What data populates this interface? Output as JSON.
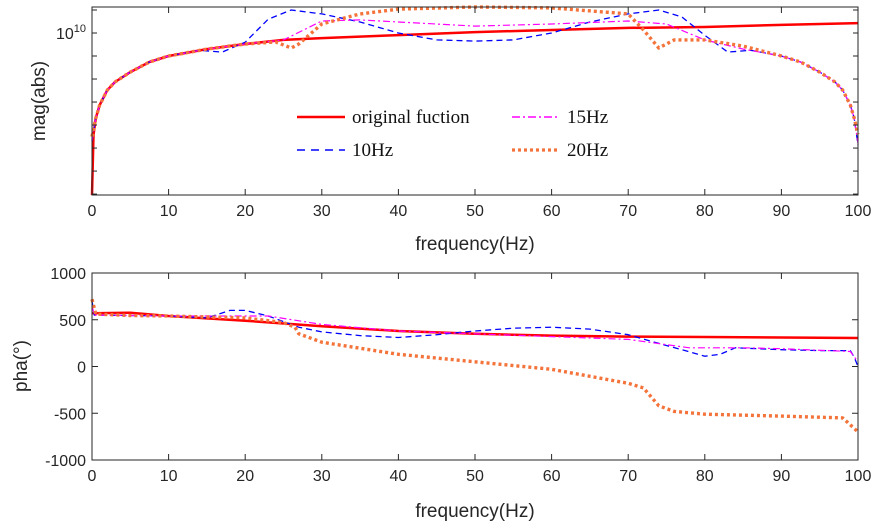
{
  "colors": {
    "original": "#ff0000",
    "10Hz": "#0000ff",
    "15Hz": "#ff00ff",
    "20Hz": "#f4733a"
  },
  "chart_data": [
    {
      "type": "line",
      "xlabel": "frequency(Hz)",
      "ylabel": "mag(abs)",
      "yscale": "log",
      "xlim": [
        0,
        100
      ],
      "ylim_log10": [
        2.96,
        11.13
      ],
      "xticks": [
        0,
        10,
        20,
        30,
        40,
        50,
        60,
        70,
        80,
        90,
        100
      ],
      "ytick_labels": [
        {
          "base": "10",
          "exp": "10",
          "value_log10": 10
        }
      ],
      "grid": false,
      "legend": {
        "placement": "center",
        "entries": [
          "original fuction",
          "10Hz",
          "15Hz",
          "20Hz"
        ]
      },
      "series": [
        {
          "name": "original fuction",
          "style": "solid",
          "x": [
            0,
            0.2,
            0.5,
            1,
            2,
            3,
            5,
            7.5,
            10,
            15,
            20,
            25,
            30,
            40,
            50,
            60,
            70,
            80,
            90,
            100
          ],
          "y_log10": [
            2.96,
            5.57,
            6.3,
            6.87,
            7.52,
            7.87,
            8.3,
            8.74,
            9.0,
            9.3,
            9.52,
            9.7,
            9.78,
            9.91,
            10.04,
            10.13,
            10.22,
            10.26,
            10.35,
            10.43
          ]
        },
        {
          "name": "10Hz",
          "style": "dashed",
          "x": [
            0,
            0.5,
            1,
            2,
            3,
            5,
            7.5,
            10,
            14,
            17,
            20,
            23,
            26,
            30,
            35,
            40,
            45,
            50,
            55,
            60,
            65,
            70,
            74,
            77,
            80,
            83,
            86,
            90,
            92.5,
            95,
            97,
            98,
            99,
            99.5,
            100
          ],
          "y_log10": [
            5.3,
            6.3,
            6.87,
            7.52,
            7.87,
            8.3,
            8.74,
            9.0,
            9.25,
            9.17,
            9.6,
            10.6,
            11.0,
            10.83,
            10.48,
            10.0,
            9.7,
            9.65,
            9.7,
            10.0,
            10.48,
            10.83,
            11.0,
            10.7,
            9.9,
            9.17,
            9.25,
            9.0,
            8.74,
            8.3,
            7.87,
            7.52,
            6.87,
            6.3,
            5.13
          ]
        },
        {
          "name": "15Hz",
          "style": "dashdot",
          "x": [
            0,
            0.5,
            1,
            2,
            3,
            5,
            7.5,
            10,
            15,
            20,
            25,
            30,
            35,
            40,
            50,
            60,
            70,
            75,
            80,
            85,
            90,
            92.5,
            95,
            97,
            98,
            99,
            99.5,
            100
          ],
          "y_log10": [
            5.3,
            6.3,
            6.87,
            7.52,
            7.87,
            8.3,
            8.74,
            9.0,
            9.3,
            9.52,
            9.7,
            10.52,
            10.57,
            10.48,
            10.3,
            10.39,
            10.52,
            10.39,
            9.7,
            9.3,
            9.0,
            8.74,
            8.3,
            7.87,
            7.52,
            6.87,
            6.3,
            5.2
          ]
        },
        {
          "name": "20Hz",
          "style": "dotted",
          "x": [
            0,
            0.5,
            1,
            2,
            3,
            5,
            7.5,
            10,
            15,
            20,
            24,
            26,
            27,
            30,
            35,
            40,
            50,
            60,
            70,
            72,
            74,
            76,
            80,
            85,
            90,
            92.5,
            95,
            97,
            98,
            99,
            99.5,
            100
          ],
          "y_log10": [
            5.5,
            6.3,
            6.87,
            7.52,
            7.87,
            8.3,
            8.74,
            9.0,
            9.3,
            9.52,
            9.61,
            9.35,
            9.52,
            10.39,
            10.83,
            11.04,
            11.13,
            11.09,
            10.83,
            10.13,
            9.35,
            9.7,
            9.7,
            9.43,
            9.0,
            8.74,
            8.3,
            7.87,
            7.52,
            6.87,
            6.3,
            5.6
          ]
        }
      ]
    },
    {
      "type": "line",
      "xlabel": "frequency(Hz)",
      "ylabel": "pha(°)",
      "xlim": [
        0,
        100
      ],
      "ylim": [
        -1000,
        1000
      ],
      "xticks": [
        0,
        10,
        20,
        30,
        40,
        50,
        60,
        70,
        80,
        90,
        100
      ],
      "yticks": [
        1000,
        500,
        0,
        -500,
        -1000
      ],
      "grid": false,
      "series": [
        {
          "name": "original fuction",
          "style": "solid",
          "x": [
            0,
            5,
            10,
            20,
            30,
            40,
            50,
            60,
            70,
            80,
            90,
            100
          ],
          "y": [
            570,
            575,
            540,
            490,
            430,
            380,
            350,
            330,
            320,
            315,
            310,
            305
          ]
        },
        {
          "name": "10Hz",
          "style": "dashed",
          "x": [
            0,
            0.3,
            5,
            10,
            15,
            18,
            20,
            23,
            27,
            30,
            35,
            40,
            45,
            50,
            55,
            60,
            65,
            70,
            73,
            77,
            80,
            82,
            84,
            90,
            95,
            99,
            99.5,
            100
          ],
          "y": [
            700,
            550,
            545,
            540,
            520,
            600,
            600,
            540,
            420,
            370,
            330,
            310,
            340,
            380,
            410,
            420,
            400,
            340,
            270,
            180,
            110,
            130,
            200,
            180,
            170,
            170,
            100,
            0
          ]
        },
        {
          "name": "15Hz",
          "style": "dashdot",
          "x": [
            0,
            0.3,
            10,
            20,
            23,
            30,
            40,
            50,
            60,
            70,
            78,
            85,
            90,
            99,
            100
          ],
          "y": [
            650,
            550,
            540,
            540,
            540,
            450,
            380,
            350,
            320,
            290,
            200,
            200,
            190,
            160,
            50
          ]
        },
        {
          "name": "20Hz",
          "style": "dotted",
          "x": [
            0,
            0.5,
            5,
            10,
            20,
            25,
            26.5,
            27,
            30,
            40,
            50,
            60,
            70,
            72,
            74,
            76,
            80,
            90,
            98,
            100
          ],
          "y": [
            720,
            560,
            545,
            540,
            520,
            470,
            420,
            350,
            260,
            130,
            50,
            -30,
            -180,
            -230,
            -420,
            -480,
            -510,
            -530,
            -550,
            -700
          ]
        }
      ]
    }
  ]
}
